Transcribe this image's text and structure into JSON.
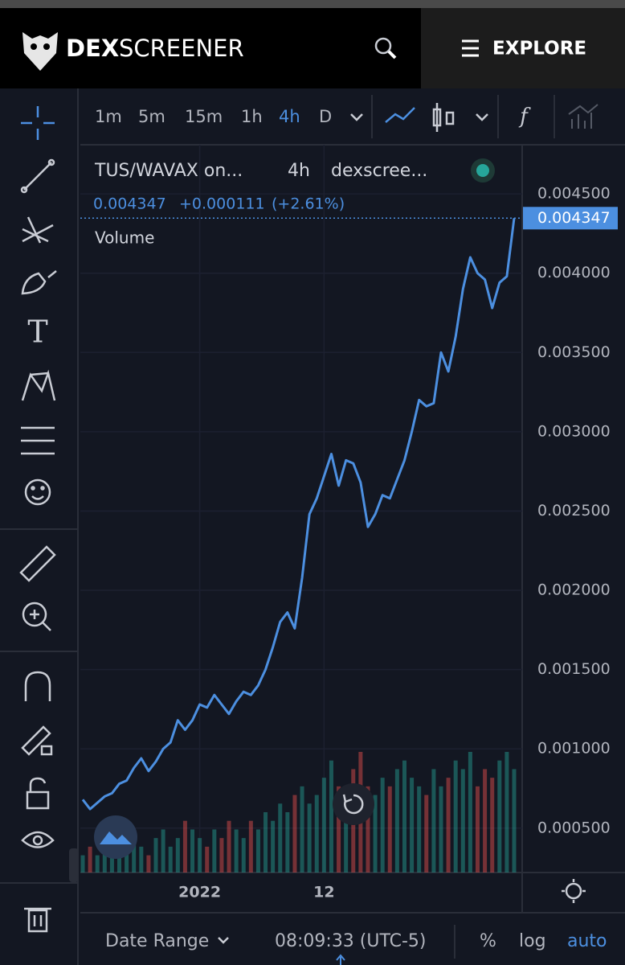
{
  "header": {
    "brand_bold": "DEX",
    "brand": "SCREENER",
    "explore": "EXPLORE"
  },
  "toolbar": {
    "timeframes": [
      "1m",
      "5m",
      "15m",
      "1h",
      "4h",
      "D"
    ]
  },
  "legend": {
    "symbol": "TUS/WAVAX on...",
    "interval": "4h",
    "source": "dexscree...",
    "change": "+0.000111",
    "change_pct": "(+2.61%)",
    "volume": "Volume"
  },
  "chart_data": {
    "type": "line",
    "categories": [
      null,
      null,
      null,
      null,
      null,
      null,
      null,
      null,
      null,
      null,
      null,
      null,
      null,
      null,
      null,
      null,
      "2022",
      null,
      null,
      null,
      null,
      null,
      null,
      null,
      null,
      null,
      null,
      null,
      null,
      null,
      null,
      null,
      null,
      "12",
      null,
      null,
      null,
      null,
      null,
      null,
      null,
      null,
      null,
      null,
      null,
      null,
      null,
      null,
      null,
      null,
      null,
      null,
      null,
      null,
      null,
      null,
      null,
      null,
      null,
      null
    ],
    "series": [
      {
        "name": "TUS/WAVAX",
        "color": "#4c8fe0",
        "values": [
          0.00068,
          0.00062,
          0.00066,
          0.0007,
          0.00072,
          0.00078,
          0.0008,
          0.00088,
          0.00094,
          0.00086,
          0.00092,
          0.001,
          0.00104,
          0.00118,
          0.00112,
          0.00118,
          0.00128,
          0.00126,
          0.00134,
          0.00128,
          0.00122,
          0.0013,
          0.00136,
          0.00134,
          0.0014,
          0.0015,
          0.00164,
          0.0018,
          0.00186,
          0.00176,
          0.00208,
          0.00248,
          0.00258,
          0.00272,
          0.00286,
          0.00266,
          0.00282,
          0.0028,
          0.00268,
          0.0024,
          0.00248,
          0.0026,
          0.00258,
          0.0027,
          0.00282,
          0.003,
          0.0032,
          0.00316,
          0.00318,
          0.0035,
          0.00338,
          0.0036,
          0.0039,
          0.0041,
          0.004,
          0.00396,
          0.00378,
          0.00394,
          0.00398,
          0.004347
        ]
      }
    ],
    "volume": [
      2,
      3,
      2,
      4,
      3,
      3,
      5,
      4,
      3,
      2,
      4,
      5,
      3,
      4,
      6,
      5,
      4,
      3,
      5,
      4,
      6,
      5,
      4,
      6,
      5,
      7,
      6,
      8,
      7,
      9,
      10,
      8,
      9,
      11,
      13,
      10,
      9,
      12,
      14,
      10,
      9,
      11,
      10,
      12,
      13,
      11,
      10,
      9,
      12,
      10,
      11,
      13,
      12,
      14,
      10,
      12,
      11,
      13,
      14,
      12
    ],
    "up_color": "#26a69a",
    "down_color": "#ef5350",
    "ylim": [
      0.00022,
      0.00481
    ],
    "yticks": [
      {
        "value": 0.0005,
        "label": "0.000500"
      },
      {
        "value": 0.001,
        "label": "0.001000"
      },
      {
        "value": 0.0015,
        "label": "0.001500"
      },
      {
        "value": 0.002,
        "label": "0.002000"
      },
      {
        "value": 0.0025,
        "label": "0.002500"
      },
      {
        "value": 0.003,
        "label": "0.003000"
      },
      {
        "value": 0.0035,
        "label": "0.003500"
      },
      {
        "value": 0.004,
        "label": "0.004000"
      },
      {
        "value": 0.0045,
        "label": "0.004500"
      }
    ],
    "grid": true
  },
  "footer": {
    "date_range": "Date Range",
    "time": "08:09:33 (UTC-5)",
    "percent": "%",
    "log": "log",
    "auto": "auto"
  }
}
